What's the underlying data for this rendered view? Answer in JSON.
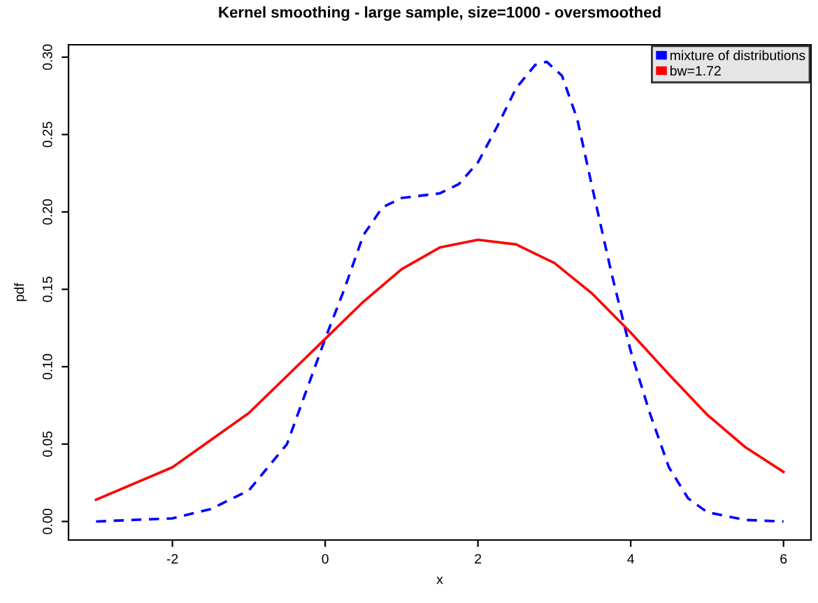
{
  "chart_data": {
    "type": "line",
    "title": "Kernel smoothing - large sample, size=1000 - oversmoothed",
    "xlabel": "x",
    "ylabel": "pdf",
    "xlim": [
      -3.36,
      6.36
    ],
    "ylim": [
      -0.012,
      0.308
    ],
    "xticks": [
      -2,
      0,
      2,
      4,
      6
    ],
    "yticks": [
      {
        "value": 0.0,
        "label": "0.00"
      },
      0.05,
      {
        "value": 0.1,
        "label": "0.10"
      },
      0.15,
      {
        "value": 0.2,
        "label": "0.20"
      },
      0.25,
      {
        "value": 0.3,
        "label": "0.30"
      }
    ],
    "grid": false,
    "legend": "top right",
    "series": [
      {
        "name": "mixture of distributions",
        "color": "#0000ff",
        "line_style": "dashed",
        "x": [
          -3,
          -2,
          -1.5,
          -1,
          -0.5,
          0,
          0.25,
          0.5,
          0.75,
          1.0,
          1.5,
          1.75,
          2,
          2.25,
          2.5,
          2.75,
          2.9,
          3.1,
          3.3,
          3.5,
          3.75,
          4,
          4.25,
          4.5,
          4.75,
          5,
          5.5,
          6
        ],
        "values": [
          0.0,
          0.002,
          0.008,
          0.02,
          0.05,
          0.118,
          0.15,
          0.185,
          0.203,
          0.209,
          0.212,
          0.218,
          0.232,
          0.255,
          0.28,
          0.295,
          0.297,
          0.288,
          0.26,
          0.215,
          0.16,
          0.11,
          0.07,
          0.035,
          0.015,
          0.006,
          0.001,
          0.0
        ]
      },
      {
        "name": "bw=1.72",
        "color": "#ff0000",
        "line_style": "solid",
        "x": [
          -3,
          -2,
          -1,
          0,
          0.5,
          1,
          1.5,
          2,
          2.5,
          3,
          3.5,
          4,
          4.5,
          5,
          5.5,
          6
        ],
        "values": [
          0.014,
          0.035,
          0.07,
          0.118,
          0.142,
          0.163,
          0.177,
          0.182,
          0.179,
          0.167,
          0.147,
          0.122,
          0.095,
          0.069,
          0.048,
          0.032
        ]
      }
    ]
  }
}
